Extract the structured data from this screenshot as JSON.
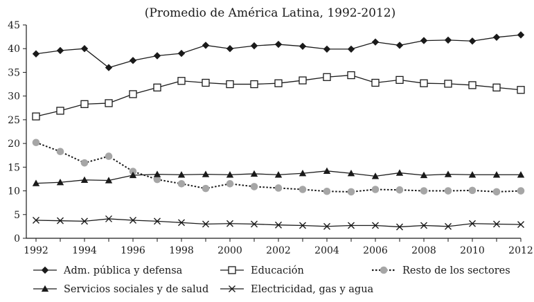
{
  "chart_data": {
    "type": "line",
    "title": "(Promedio de América Latina, 1992-2012)",
    "xlabel": "",
    "ylabel": "",
    "ylim": [
      0,
      45
    ],
    "yticks": [
      0,
      5,
      10,
      15,
      20,
      25,
      30,
      35,
      40,
      45
    ],
    "xlim": [
      1992,
      2012
    ],
    "xticks": [
      1992,
      1994,
      1996,
      1998,
      2000,
      2002,
      2004,
      2006,
      2008,
      2010,
      2012
    ],
    "x": [
      1992,
      1993,
      1994,
      1995,
      1996,
      1997,
      1998,
      1999,
      2000,
      2001,
      2002,
      2003,
      2004,
      2005,
      2006,
      2007,
      2008,
      2009,
      2010,
      2011,
      2012
    ],
    "series": [
      {
        "name": "Adm. pública y defensa",
        "marker": "diamond",
        "line": "solid",
        "color": "#1a1a1a",
        "values": [
          38.9,
          39.6,
          40.0,
          36.0,
          37.5,
          38.5,
          39.0,
          40.7,
          40.0,
          40.6,
          40.9,
          40.5,
          39.9,
          39.9,
          41.4,
          40.7,
          41.7,
          41.8,
          41.6,
          42.4,
          42.9
        ]
      },
      {
        "name": "Educación",
        "marker": "square",
        "line": "solid",
        "color": "#1a1a1a",
        "values": [
          25.7,
          26.9,
          28.3,
          28.5,
          30.4,
          31.8,
          33.2,
          32.8,
          32.5,
          32.5,
          32.7,
          33.3,
          34.0,
          34.4,
          32.8,
          33.4,
          32.7,
          32.6,
          32.3,
          31.8,
          31.3
        ]
      },
      {
        "name": "Resto de los sectores",
        "marker": "circle",
        "line": "dotted",
        "color": "#a6a6a6",
        "values": [
          20.2,
          18.3,
          15.9,
          17.3,
          14.1,
          12.4,
          11.5,
          10.5,
          11.5,
          10.9,
          10.6,
          10.3,
          9.9,
          9.8,
          10.3,
          10.2,
          10.0,
          10.0,
          10.1,
          9.8,
          10.0
        ]
      },
      {
        "name": "Servicios sociales y de salud",
        "marker": "triangle",
        "line": "solid",
        "color": "#1a1a1a",
        "values": [
          11.6,
          11.8,
          12.3,
          12.2,
          13.3,
          13.5,
          13.4,
          13.5,
          13.4,
          13.6,
          13.4,
          13.7,
          14.2,
          13.7,
          13.1,
          13.8,
          13.3,
          13.5,
          13.4,
          13.4,
          13.4
        ]
      },
      {
        "name": "Electricidad, gas y agua",
        "marker": "x",
        "line": "solid",
        "color": "#1a1a1a",
        "values": [
          3.8,
          3.7,
          3.6,
          4.1,
          3.8,
          3.6,
          3.3,
          3.0,
          3.1,
          3.0,
          2.8,
          2.7,
          2.5,
          2.7,
          2.7,
          2.4,
          2.7,
          2.5,
          3.1,
          3.0,
          2.9
        ]
      }
    ],
    "legend_position": "bottom"
  }
}
